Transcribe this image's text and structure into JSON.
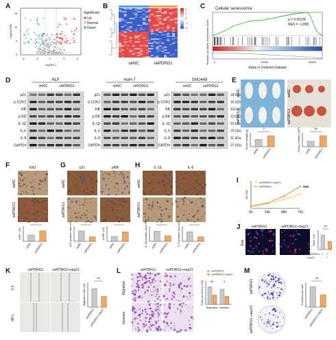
{
  "panels": {
    "A": {
      "label": "A",
      "xlabel": "log2(FC)",
      "ylabel": "-log10(FDR)",
      "legend_title": "Significant",
      "legend": [
        "Up",
        "Normal",
        "Down"
      ],
      "colors": {
        "up": "#d62728",
        "normal": "#b0b0b0",
        "down": "#2a8fb0"
      },
      "xticks": [
        "-6",
        "-3",
        "0",
        "3",
        "6"
      ],
      "yticks": [
        "0",
        "5",
        "10",
        "15"
      ]
    },
    "B": {
      "label": "B",
      "groups": [
        "oeNC",
        "oePDRG1"
      ],
      "scale": [
        "2",
        "1",
        "0",
        "-1",
        "-2"
      ]
    },
    "C": {
      "label": "C",
      "title": "Cellular senescence",
      "stats": [
        "p = 0.00232",
        "NES = -1.899"
      ],
      "ylabel_top": "Enrichment Score",
      "ylabel_bottom": "Ranked List Metric",
      "xlabel": "Rank in Ordered Dataset",
      "xticks": [
        "0",
        "10000",
        "20000"
      ]
    },
    "D": {
      "label": "D",
      "blots": [
        {
          "cell": "HLF",
          "lanes": [
            "shNC",
            "shPDRG1"
          ]
        },
        {
          "cell": "HuH-7",
          "lanes": [
            "shNC",
            "shPDRG1"
          ]
        },
        {
          "cell": "SNU449",
          "lanes": [
            "oeNC",
            "oePDRG1"
          ]
        }
      ],
      "proteins": [
        "p21",
        "p-CDK2",
        "RB",
        "p-RB",
        "IL-1β",
        "IL-6",
        "IL-8",
        "GAPDH"
      ],
      "sizes": [
        "18 kDa",
        "33 kDa",
        "110 kDa",
        "110 kDa",
        "31 kDa",
        "20 kDa",
        "11 kDa",
        "37 kDa"
      ]
    },
    "E": {
      "label": "E",
      "rows": [
        "oeNC",
        "oePDRG1"
      ],
      "chart_weight": {
        "ylabel": "Tumor weight (g)",
        "categories": [
          "oeNC",
          "oePDRG1"
        ],
        "sig": "*"
      },
      "chart_volume": {
        "ylabel": "Tumor volume (cm³)",
        "categories": [
          "oeNC",
          "oePDRG1"
        ],
        "sig": "**"
      }
    },
    "F": {
      "label": "F",
      "title": "Ki67",
      "rows": [
        "oeNC",
        "oePDRG1"
      ],
      "ylabel": "Ki67+ (%)",
      "categories": [
        "oeNC",
        "oePDRG1"
      ],
      "sig": "*"
    },
    "G": {
      "label": "G",
      "titles": [
        "p21",
        "pRB"
      ],
      "rows": [
        "oeNC",
        "oePDRG1"
      ],
      "ylabels": [
        "p21 positive area (%)",
        "p-RB+ (%)"
      ],
      "categories": [
        "oeNC",
        "oePDRG1"
      ],
      "sig": [
        "*",
        "*"
      ]
    },
    "H": {
      "label": "H",
      "titles": [
        "IL-1β",
        "IL-6"
      ],
      "rows": [
        "oeNC",
        "oePDRG1"
      ],
      "ylabels": [
        "IL-1β positive area (%)",
        "IL-6 positive area (%)"
      ],
      "categories": [
        "oeNC",
        "oePDRG1"
      ],
      "sig": [
        "*",
        "*"
      ]
    },
    "I": {
      "label": "I",
      "legend": [
        "oePDRG1+oep21",
        "oePDRG1"
      ],
      "ylabel": "OD 450",
      "xticks": [
        "0h",
        "24h",
        "48h",
        "72h"
      ],
      "sig": "***"
    },
    "J": {
      "label": "J",
      "row": "Edu",
      "titles": [
        "oePDRG1",
        "oePDRG1+oep21"
      ],
      "ylabel": "Edu+ (%)",
      "conditions": [
        "oePDRG1",
        "oep21"
      ],
      "signs": [
        [
          "+",
          "+"
        ],
        [
          "-",
          "+"
        ]
      ],
      "sig": "**"
    },
    "K": {
      "label": "K",
      "titles": [
        "oePDRG1",
        "oePDRG1+oep21"
      ],
      "rows": [
        "0 h",
        "48 h"
      ],
      "ylabel": "Migration ratio (%)",
      "categories": [
        "oePDRG1",
        "oePDRG1+oep21"
      ],
      "sig": "**"
    },
    "L": {
      "label": "L",
      "titles": [
        "oePDRG1",
        "oePDRG1+oep21"
      ],
      "rows": [
        "Migration",
        "Invasion"
      ],
      "legend": [
        "oePDRG1",
        "oePDRG1+oep21"
      ],
      "ylabel": "Cells per field (×100)",
      "categories": [
        "Migration",
        "Invasion"
      ],
      "sig": [
        "**",
        "*"
      ]
    },
    "M": {
      "label": "M",
      "rows": [
        "oePDRG1",
        "oePDRG1 +oep21"
      ],
      "ylabel": "Colonies per well",
      "categories": [
        "oePDRG1",
        "oePDRG1+oep21"
      ],
      "sig": "**"
    }
  },
  "chart_data": [
    {
      "type": "bar",
      "panel": "E",
      "ylabel": "Tumor weight (g)",
      "categories": [
        "oeNC",
        "oePDRG1"
      ],
      "values": [
        0.8,
        1.2
      ],
      "ylim": [
        0,
        1.5
      ]
    },
    {
      "type": "bar",
      "panel": "E",
      "ylabel": "Tumor volume (cm³)",
      "categories": [
        "oeNC",
        "oePDRG1"
      ],
      "values": [
        0.8,
        1.6
      ],
      "ylim": [
        0,
        2.0
      ]
    },
    {
      "type": "bar",
      "panel": "F",
      "ylabel": "Ki67+ (%)",
      "categories": [
        "oeNC",
        "oePDRG1"
      ],
      "values": [
        25,
        42
      ],
      "ylim": [
        0,
        60
      ]
    },
    {
      "type": "bar",
      "panel": "G",
      "ylabel": "p21 positive area (%)",
      "categories": [
        "oeNC",
        "oePDRG1"
      ],
      "values": [
        42,
        18
      ],
      "ylim": [
        0,
        60
      ]
    },
    {
      "type": "bar",
      "panel": "G",
      "ylabel": "p-RB+ (%)",
      "categories": [
        "oeNC",
        "oePDRG1"
      ],
      "values": [
        20,
        38
      ],
      "ylim": [
        0,
        60
      ]
    },
    {
      "type": "bar",
      "panel": "H",
      "ylabel": "IL-1β positive area (%)",
      "categories": [
        "oeNC",
        "oePDRG1"
      ],
      "values": [
        40,
        22
      ],
      "ylim": [
        0,
        60
      ]
    },
    {
      "type": "bar",
      "panel": "H",
      "ylabel": "IL-6 positive area (%)",
      "categories": [
        "oeNC",
        "oePDRG1"
      ],
      "values": [
        38,
        18
      ],
      "ylim": [
        0,
        60
      ]
    },
    {
      "type": "line",
      "panel": "I",
      "ylabel": "OD 450",
      "x": [
        "0h",
        "24h",
        "48h",
        "72h"
      ],
      "series": [
        {
          "name": "oePDRG1+oep21",
          "values": [
            0.2,
            0.4,
            0.8,
            1.3
          ]
        },
        {
          "name": "oePDRG1",
          "values": [
            0.2,
            0.5,
            1.1,
            2.0
          ]
        }
      ],
      "ylim": [
        0,
        2.5
      ]
    },
    {
      "type": "bar",
      "panel": "J",
      "ylabel": "Edu+ (%)",
      "categories": [
        "oePDRG1",
        "oePDRG1+oep21"
      ],
      "values": [
        30,
        17
      ],
      "ylim": [
        0,
        40
      ]
    },
    {
      "type": "bar",
      "panel": "K",
      "ylabel": "Migration ratio (%)",
      "categories": [
        "oePDRG1",
        "oePDRG1+oep21"
      ],
      "values": [
        60,
        35
      ],
      "ylim": [
        0,
        80
      ]
    },
    {
      "type": "bar",
      "panel": "L",
      "ylabel": "Cells per field (×100)",
      "categories": [
        "Migration",
        "Invasion"
      ],
      "series": [
        {
          "name": "oePDRG1",
          "values": [
            1.5,
            1.3
          ]
        },
        {
          "name": "oePDRG1+oep21",
          "values": [
            0.8,
            0.7
          ]
        }
      ],
      "ylim": [
        0,
        2
      ]
    },
    {
      "type": "bar",
      "panel": "M",
      "ylabel": "Colonies per well",
      "categories": [
        "oePDRG1",
        "oePDRG1+oep21"
      ],
      "values": [
        50,
        30
      ],
      "ylim": [
        0,
        60
      ]
    }
  ]
}
